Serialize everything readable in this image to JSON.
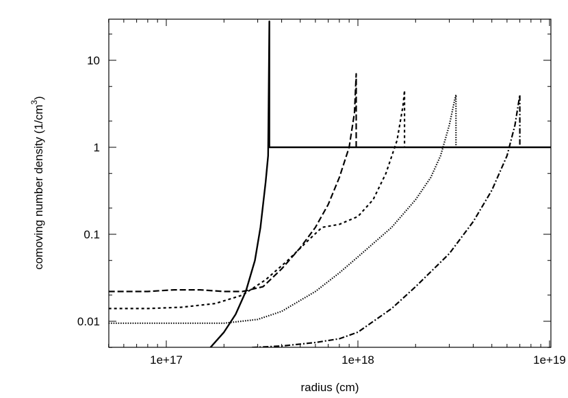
{
  "chart_data": {
    "type": "line",
    "title": "",
    "xlabel": "radius (cm)",
    "ylabel": "comoving number density (1/cm",
    "ylabel_superscript": "3",
    "ylabel_suffix": ")",
    "xscale": "log",
    "yscale": "log",
    "xlim": [
      5e+16,
      1.1e+19
    ],
    "ylim": [
      0.005,
      30
    ],
    "grid": false,
    "legend": null,
    "x_ticks": [
      {
        "value": 1e+17,
        "label": "1e+17"
      },
      {
        "value": 1e+18,
        "label": "1e+18"
      },
      {
        "value": 1e+19,
        "label": "1e+19"
      }
    ],
    "y_ticks": [
      {
        "value": 0.01,
        "label": "0.01"
      },
      {
        "value": 0.1,
        "label": "0.1"
      },
      {
        "value": 1,
        "label": "1"
      },
      {
        "value": 10,
        "label": "10"
      }
    ],
    "series": [
      {
        "name": "solid",
        "style": "solid",
        "x": [
          1.7e+17,
          2e+17,
          2.3e+17,
          2.6e+17,
          2.9e+17,
          3.1e+17,
          3.3e+17,
          3.4e+17,
          3.42e+17,
          3.45e+17,
          3.45e+17,
          3.5e+17,
          5e+17,
          1e+18,
          5e+18,
          1.1e+19
        ],
        "y": [
          0.005,
          0.0075,
          0.012,
          0.022,
          0.05,
          0.12,
          0.4,
          0.8,
          3.0,
          28,
          1.0,
          1.0,
          1.0,
          1.0,
          1.0,
          1.0
        ]
      },
      {
        "name": "long-dash",
        "style": "long-dash",
        "x": [
          5e+16,
          8e+16,
          1.1e+17,
          1.5e+17,
          2e+17,
          2.5e+17,
          3.2e+17,
          4e+17,
          5e+17,
          6e+17,
          7e+17,
          8e+17,
          9e+17,
          9.6e+17,
          9.8e+17,
          9.8e+17
        ],
        "y": [
          0.022,
          0.022,
          0.023,
          0.023,
          0.022,
          0.022,
          0.025,
          0.04,
          0.07,
          0.12,
          0.22,
          0.45,
          1.0,
          2.5,
          7.0,
          1.0
        ]
      },
      {
        "name": "short-dash",
        "style": "short-dash",
        "x": [
          5e+16,
          8e+16,
          1.2e+17,
          1.8e+17,
          2.5e+17,
          3.3e+17,
          4.3e+17,
          5.5e+17,
          6.5e+17,
          8e+17,
          1e+18,
          1.2e+18,
          1.4e+18,
          1.6e+18,
          1.72e+18,
          1.75e+18,
          1.75e+18
        ],
        "y": [
          0.014,
          0.014,
          0.0145,
          0.016,
          0.02,
          0.03,
          0.05,
          0.085,
          0.12,
          0.13,
          0.16,
          0.25,
          0.5,
          1.2,
          3.0,
          4.5,
          1.0
        ]
      },
      {
        "name": "dotted",
        "style": "dotted",
        "x": [
          5e+16,
          1e+17,
          2e+17,
          3e+17,
          4e+17,
          6e+17,
          8e+17,
          1e+18,
          1.5e+18,
          2e+18,
          2.4e+18,
          2.7e+18,
          3e+18,
          3.2e+18,
          3.25e+18,
          3.25e+18
        ],
        "y": [
          0.0095,
          0.0095,
          0.0095,
          0.0105,
          0.013,
          0.022,
          0.036,
          0.055,
          0.12,
          0.25,
          0.45,
          0.8,
          1.8,
          3.5,
          4.0,
          1.0
        ]
      },
      {
        "name": "dash-dot",
        "style": "dash-dot",
        "x": [
          2.8e+17,
          4e+17,
          6e+17,
          8e+17,
          1e+18,
          1.5e+18,
          2e+18,
          3e+18,
          4e+18,
          5e+18,
          6e+18,
          6.6e+18,
          7e+18,
          7e+18
        ],
        "y": [
          0.005,
          0.0052,
          0.0057,
          0.0063,
          0.0075,
          0.014,
          0.025,
          0.06,
          0.14,
          0.32,
          0.8,
          1.8,
          4.0,
          1.0
        ]
      }
    ]
  }
}
